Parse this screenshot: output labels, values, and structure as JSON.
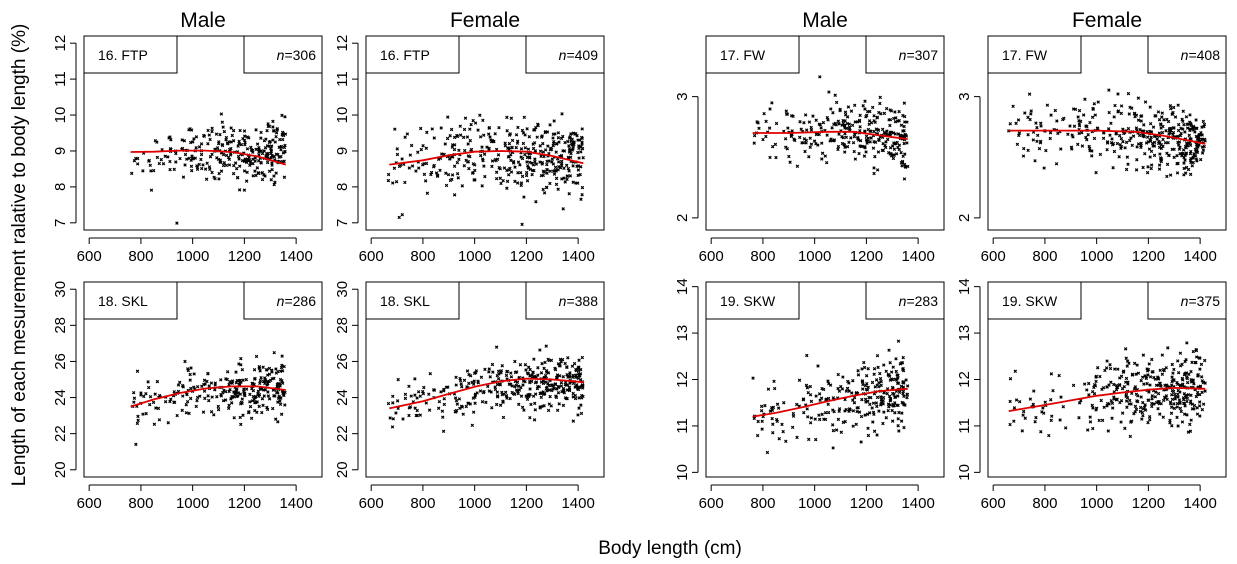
{
  "figure": {
    "xlabel": "Body length (cm)",
    "ylabel": "Length of each mesurement ralative to body length (%)"
  },
  "chart_data": [
    {
      "type": "scatter",
      "measure": "16. FTP",
      "column_title": "Male",
      "n_label": "n=306",
      "xlim": [
        580,
        1500
      ],
      "xticks": [
        600,
        800,
        1000,
        1200,
        1400
      ],
      "ylim": [
        6.8,
        12.2
      ],
      "yticks": [
        7,
        8,
        9,
        10,
        11,
        12
      ],
      "x_range": [
        760,
        1360
      ],
      "y_center": [
        8.7,
        9.0,
        8.9
      ],
      "y_spread": 0.45,
      "points_count": 306,
      "trend": {
        "x": [
          760,
          850,
          950,
          1050,
          1150,
          1250,
          1360
        ],
        "y": [
          8.97,
          8.98,
          9.01,
          9.01,
          8.97,
          8.85,
          8.62
        ]
      },
      "line_color": "#e00000",
      "point_color": "#000000"
    },
    {
      "type": "scatter",
      "measure": "16. FTP",
      "column_title": "Female",
      "n_label": "n=409",
      "xlim": [
        580,
        1500
      ],
      "xticks": [
        600,
        800,
        1000,
        1200,
        1400
      ],
      "ylim": [
        6.8,
        12.2
      ],
      "yticks": [
        7,
        8,
        9,
        10,
        11,
        12
      ],
      "x_range": [
        660,
        1420
      ],
      "y_center": [
        8.6,
        9.0,
        8.7
      ],
      "y_spread": 0.5,
      "points_count": 409,
      "trend": {
        "x": [
          670,
          800,
          900,
          1000,
          1100,
          1200,
          1300,
          1420
        ],
        "y": [
          8.62,
          8.74,
          8.88,
          8.98,
          9.0,
          8.98,
          8.86,
          8.66
        ]
      },
      "line_color": "#e00000",
      "point_color": "#000000"
    },
    {
      "type": "scatter",
      "measure": "17. FW",
      "column_title": "Male",
      "n_label": "n=307",
      "xlim": [
        580,
        1500
      ],
      "xticks": [
        600,
        800,
        1000,
        1200,
        1400
      ],
      "ylim": [
        1.9,
        3.5
      ],
      "yticks": [
        2,
        3
      ],
      "x_range": [
        760,
        1360
      ],
      "y_center": [
        2.7,
        2.72,
        2.66
      ],
      "y_spread": 0.13,
      "points_count": 307,
      "trend": {
        "x": [
          760,
          900,
          1050,
          1150,
          1250,
          1360
        ],
        "y": [
          2.7,
          2.7,
          2.71,
          2.71,
          2.68,
          2.65
        ]
      },
      "line_color": "#e00000",
      "point_color": "#000000"
    },
    {
      "type": "scatter",
      "measure": "17. FW",
      "column_title": "Female",
      "n_label": "n=408",
      "xlim": [
        580,
        1500
      ],
      "xticks": [
        600,
        800,
        1000,
        1200,
        1400
      ],
      "ylim": [
        1.9,
        3.5
      ],
      "yticks": [
        2,
        3
      ],
      "x_range": [
        660,
        1420
      ],
      "y_center": [
        2.72,
        2.72,
        2.62
      ],
      "y_spread": 0.13,
      "points_count": 408,
      "trend": {
        "x": [
          660,
          800,
          1000,
          1150,
          1250,
          1350,
          1420
        ],
        "y": [
          2.72,
          2.72,
          2.72,
          2.71,
          2.68,
          2.64,
          2.61
        ]
      },
      "line_color": "#e00000",
      "point_color": "#000000"
    },
    {
      "type": "scatter",
      "measure": "18. SKL",
      "column_title": "",
      "n_label": "n=286",
      "xlim": [
        580,
        1500
      ],
      "xticks": [
        600,
        800,
        1000,
        1200,
        1400
      ],
      "ylim": [
        19.6,
        30.4
      ],
      "yticks": [
        20,
        22,
        24,
        26,
        28,
        30
      ],
      "x_range": [
        760,
        1360
      ],
      "y_center": [
        23.5,
        24.5,
        24.5
      ],
      "y_spread": 0.75,
      "points_count": 286,
      "trend": {
        "x": [
          760,
          850,
          950,
          1050,
          1150,
          1250,
          1360
        ],
        "y": [
          23.5,
          23.9,
          24.25,
          24.5,
          24.62,
          24.62,
          24.42
        ]
      },
      "line_color": "#e00000",
      "point_color": "#000000"
    },
    {
      "type": "scatter",
      "measure": "18. SKL",
      "column_title": "",
      "n_label": "n=388",
      "xlim": [
        580,
        1500
      ],
      "xticks": [
        600,
        800,
        1000,
        1200,
        1400
      ],
      "ylim": [
        19.6,
        30.4
      ],
      "yticks": [
        20,
        22,
        24,
        26,
        28,
        30
      ],
      "x_range": [
        660,
        1420
      ],
      "y_center": [
        23.4,
        24.6,
        24.9
      ],
      "y_spread": 0.75,
      "points_count": 388,
      "trend": {
        "x": [
          670,
          800,
          900,
          1000,
          1100,
          1200,
          1300,
          1420
        ],
        "y": [
          23.4,
          23.8,
          24.2,
          24.6,
          24.9,
          25.05,
          25.0,
          24.85
        ]
      },
      "line_color": "#e00000",
      "point_color": "#000000"
    },
    {
      "type": "scatter",
      "measure": "19. SKW",
      "column_title": "",
      "n_label": "n=283",
      "xlim": [
        580,
        1500
      ],
      "xticks": [
        600,
        800,
        1000,
        1200,
        1400
      ],
      "ylim": [
        9.9,
        14.1
      ],
      "yticks": [
        10,
        11,
        12,
        13,
        14
      ],
      "x_range": [
        760,
        1360
      ],
      "y_center": [
        11.2,
        11.5,
        11.8
      ],
      "y_spread": 0.38,
      "points_count": 283,
      "trend": {
        "x": [
          760,
          850,
          950,
          1050,
          1150,
          1250,
          1360
        ],
        "y": [
          11.2,
          11.28,
          11.4,
          11.53,
          11.65,
          11.75,
          11.8
        ]
      },
      "line_color": "#e00000",
      "point_color": "#000000"
    },
    {
      "type": "scatter",
      "measure": "19. SKW",
      "column_title": "",
      "n_label": "n=375",
      "xlim": [
        580,
        1500
      ],
      "xticks": [
        600,
        800,
        1000,
        1200,
        1400
      ],
      "ylim": [
        9.9,
        14.1
      ],
      "yticks": [
        10,
        11,
        12,
        13,
        14
      ],
      "x_range": [
        660,
        1420
      ],
      "y_center": [
        11.3,
        11.65,
        11.85
      ],
      "y_spread": 0.38,
      "points_count": 375,
      "trend": {
        "x": [
          660,
          800,
          900,
          1000,
          1100,
          1200,
          1300,
          1420
        ],
        "y": [
          11.32,
          11.45,
          11.55,
          11.65,
          11.72,
          11.78,
          11.82,
          11.8
        ]
      },
      "line_color": "#e00000",
      "point_color": "#000000"
    }
  ]
}
